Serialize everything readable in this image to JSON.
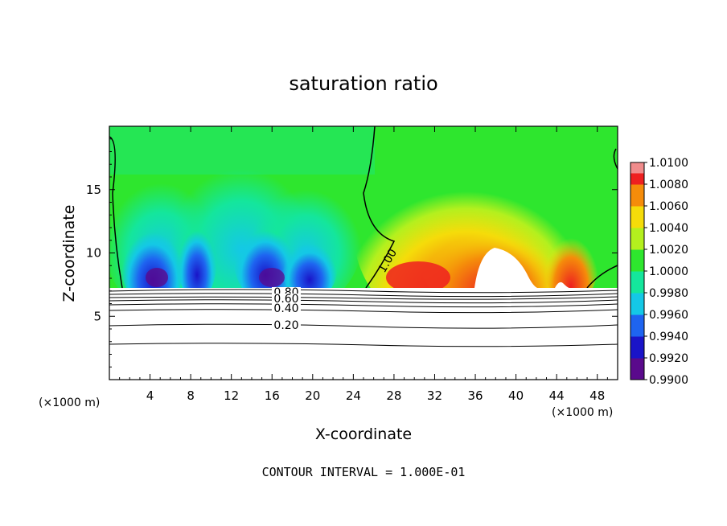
{
  "chart_data": {
    "type": "heatmap",
    "title": "saturation ratio",
    "xlabel": "X-coordinate",
    "ylabel": "Z-coordinate",
    "x_unit": "(×1000 m)",
    "xlim": [
      0,
      50
    ],
    "ylim": [
      0,
      20
    ],
    "x_ticks": [
      4,
      8,
      12,
      16,
      20,
      24,
      28,
      32,
      36,
      40,
      44,
      48
    ],
    "x_tick_labels": [
      "4",
      "8",
      "12",
      "16",
      "20",
      "24",
      "28",
      "32",
      "36",
      "40",
      "44",
      "48"
    ],
    "y_ticks": [
      5,
      10,
      15
    ],
    "y_tick_labels": [
      "5",
      "10",
      "15"
    ],
    "colorbar": {
      "min": 0.99,
      "max": 1.01,
      "tick_values": [
        0.99,
        0.992,
        0.994,
        0.996,
        0.998,
        1.0,
        1.002,
        1.004,
        1.006,
        1.008,
        1.01
      ],
      "tick_labels": [
        "0.9900",
        "0.9920",
        "0.9940",
        "0.9960",
        "0.9980",
        "1.0000",
        "1.0020",
        "1.0040",
        "1.0060",
        "1.0080",
        "1.0100"
      ],
      "colors": [
        "#5a0a8c",
        "#1a14c8",
        "#1e64f0",
        "#14c8e6",
        "#14e69c",
        "#2ee62e",
        "#b4f01e",
        "#f5dc0a",
        "#f58c0a",
        "#ee2020",
        "#f08c8c"
      ]
    },
    "contours": {
      "interval_text": "CONTOUR INTERVAL = 1.000E-01",
      "labels": [
        "1.00",
        "0.80",
        "0.60",
        "0.40",
        "0.20"
      ],
      "values": [
        1.0,
        0.8,
        0.6,
        0.4,
        0.2
      ]
    },
    "field": {
      "boundary_layer_top_z": 7.2,
      "background_value": 0.9998,
      "features": [
        {
          "x": 5,
          "z": 9,
          "value": 0.9915
        },
        {
          "x": 7,
          "z": 9.5,
          "value": 0.993
        },
        {
          "x": 11,
          "z": 10,
          "value": 0.9945
        },
        {
          "x": 16,
          "z": 9,
          "value": 0.9905
        },
        {
          "x": 20,
          "z": 9,
          "value": 0.9935
        },
        {
          "x": 33,
          "z": 12,
          "value": 1.004
        },
        {
          "x": 37,
          "z": 10,
          "value": 1.01
        },
        {
          "x": 45,
          "z": 9.5,
          "value": 1.007
        },
        {
          "x": 30,
          "z": 8,
          "value": 1.008
        }
      ]
    }
  }
}
